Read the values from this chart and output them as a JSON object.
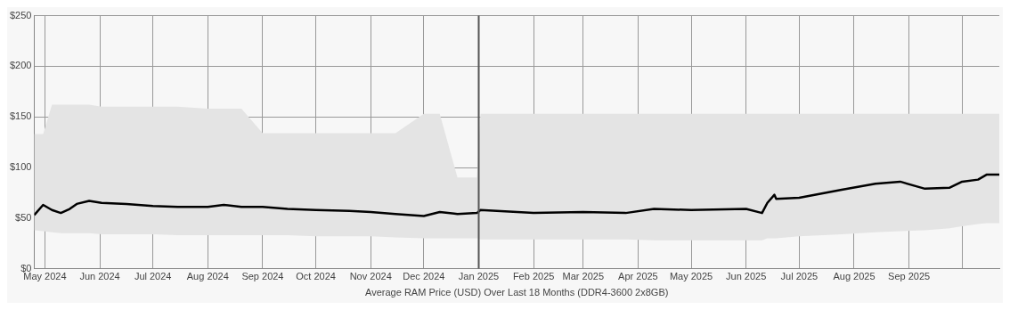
{
  "chart_data": {
    "type": "line",
    "xlabel": "Average RAM Price (USD) Over Last 18 Months (DDR4-3600 2x8GB)",
    "x": [
      "2024-04-25",
      "2024-04-30",
      "2024-05-05",
      "2024-05-10",
      "2024-05-15",
      "2024-05-19",
      "2024-05-26",
      "2024-06-02",
      "2024-06-16",
      "2024-07-01",
      "2024-07-15",
      "2024-08-01",
      "2024-08-10",
      "2024-08-20",
      "2024-09-01",
      "2024-09-15",
      "2024-10-01",
      "2024-10-20",
      "2024-11-01",
      "2024-11-15",
      "2024-12-01",
      "2024-12-10",
      "2024-12-20",
      "2024-12-31",
      "2025-01-02",
      "2025-02-01",
      "2025-03-01",
      "2025-03-25",
      "2025-04-10",
      "2025-05-01",
      "2025-06-01",
      "2025-06-10",
      "2025-06-13",
      "2025-06-17",
      "2025-06-18",
      "2025-07-01",
      "2025-07-25",
      "2025-08-13",
      "2025-08-27",
      "2025-09-10",
      "2025-09-24",
      "2025-10-01",
      "2025-10-10",
      "2025-10-15",
      "2025-10-22"
    ],
    "series": [
      {
        "color": "#000000",
        "values": [
          53,
          63,
          58,
          55,
          59,
          64,
          67,
          65,
          64,
          62,
          61,
          61,
          63,
          61,
          61,
          59,
          58,
          57,
          56,
          54,
          52,
          56,
          54,
          55,
          58,
          55,
          56,
          55,
          59,
          58,
          59,
          55,
          65,
          73,
          69,
          70,
          78,
          84,
          86,
          79,
          80,
          86,
          88,
          93,
          93
        ],
        "lower": [
          38,
          37,
          36,
          35,
          35,
          35,
          35,
          34,
          34,
          34,
          33,
          33,
          33,
          33,
          33,
          33,
          32,
          32,
          32,
          31,
          30,
          30,
          30,
          30,
          29,
          29,
          29,
          29,
          28,
          28,
          28,
          28,
          30,
          30,
          30,
          32,
          34,
          36,
          37,
          38,
          40,
          42,
          44,
          45,
          45
        ],
        "upper": [
          133,
          133,
          162,
          162,
          162,
          162,
          162,
          160,
          160,
          160,
          160,
          158,
          158,
          158,
          134,
          134,
          134,
          134,
          134,
          134,
          153,
          153,
          90,
          90,
          153,
          153,
          153,
          153,
          153,
          153,
          153,
          153,
          153,
          153,
          153,
          153,
          153,
          153,
          153,
          153,
          153,
          153,
          153,
          153,
          153
        ]
      }
    ],
    "xlim": [
      "2024-04-25",
      "2025-10-22"
    ],
    "xticks": [
      {
        "value": "2024-05-01",
        "label": "May 2024"
      },
      {
        "value": "2024-06-01",
        "label": "Jun 2024"
      },
      {
        "value": "2024-07-01",
        "label": "Jul 2024"
      },
      {
        "value": "2024-08-01",
        "label": "Aug 2024"
      },
      {
        "value": "2024-09-01",
        "label": "Sep 2024"
      },
      {
        "value": "2024-10-01",
        "label": "Oct 2024"
      },
      {
        "value": "2024-11-01",
        "label": "Nov 2024"
      },
      {
        "value": "2024-12-01",
        "label": "Dec 2024"
      },
      {
        "value": "2025-01-01",
        "label": "Jan 2025"
      },
      {
        "value": "2025-02-01",
        "label": "Feb 2025"
      },
      {
        "value": "2025-03-01",
        "label": "Mar 2025"
      },
      {
        "value": "2025-04-01",
        "label": "Apr 2025"
      },
      {
        "value": "2025-05-01",
        "label": "May 2025"
      },
      {
        "value": "2025-06-01",
        "label": "Jun 2025"
      },
      {
        "value": "2025-07-01",
        "label": "Jul 2025"
      },
      {
        "value": "2025-08-01",
        "label": "Aug 2025"
      },
      {
        "value": "2025-09-01",
        "label": "Sep 2025"
      },
      {
        "value": "2025-10-01",
        "label": null
      }
    ],
    "ylim": [
      0,
      250
    ],
    "yticks": [
      {
        "value": 0,
        "label": "$0"
      },
      {
        "value": 50,
        "label": "$50"
      },
      {
        "value": 100,
        "label": "$100"
      },
      {
        "value": 150,
        "label": "$150"
      },
      {
        "value": 200,
        "label": "$200"
      },
      {
        "value": 250,
        "label": "$250"
      }
    ],
    "ref_lines": [
      {
        "axis": "x",
        "value": "2025-01-01",
        "color": "#555555"
      }
    ],
    "grid": true,
    "legend": false,
    "marker": "none",
    "line_style": "solid"
  }
}
